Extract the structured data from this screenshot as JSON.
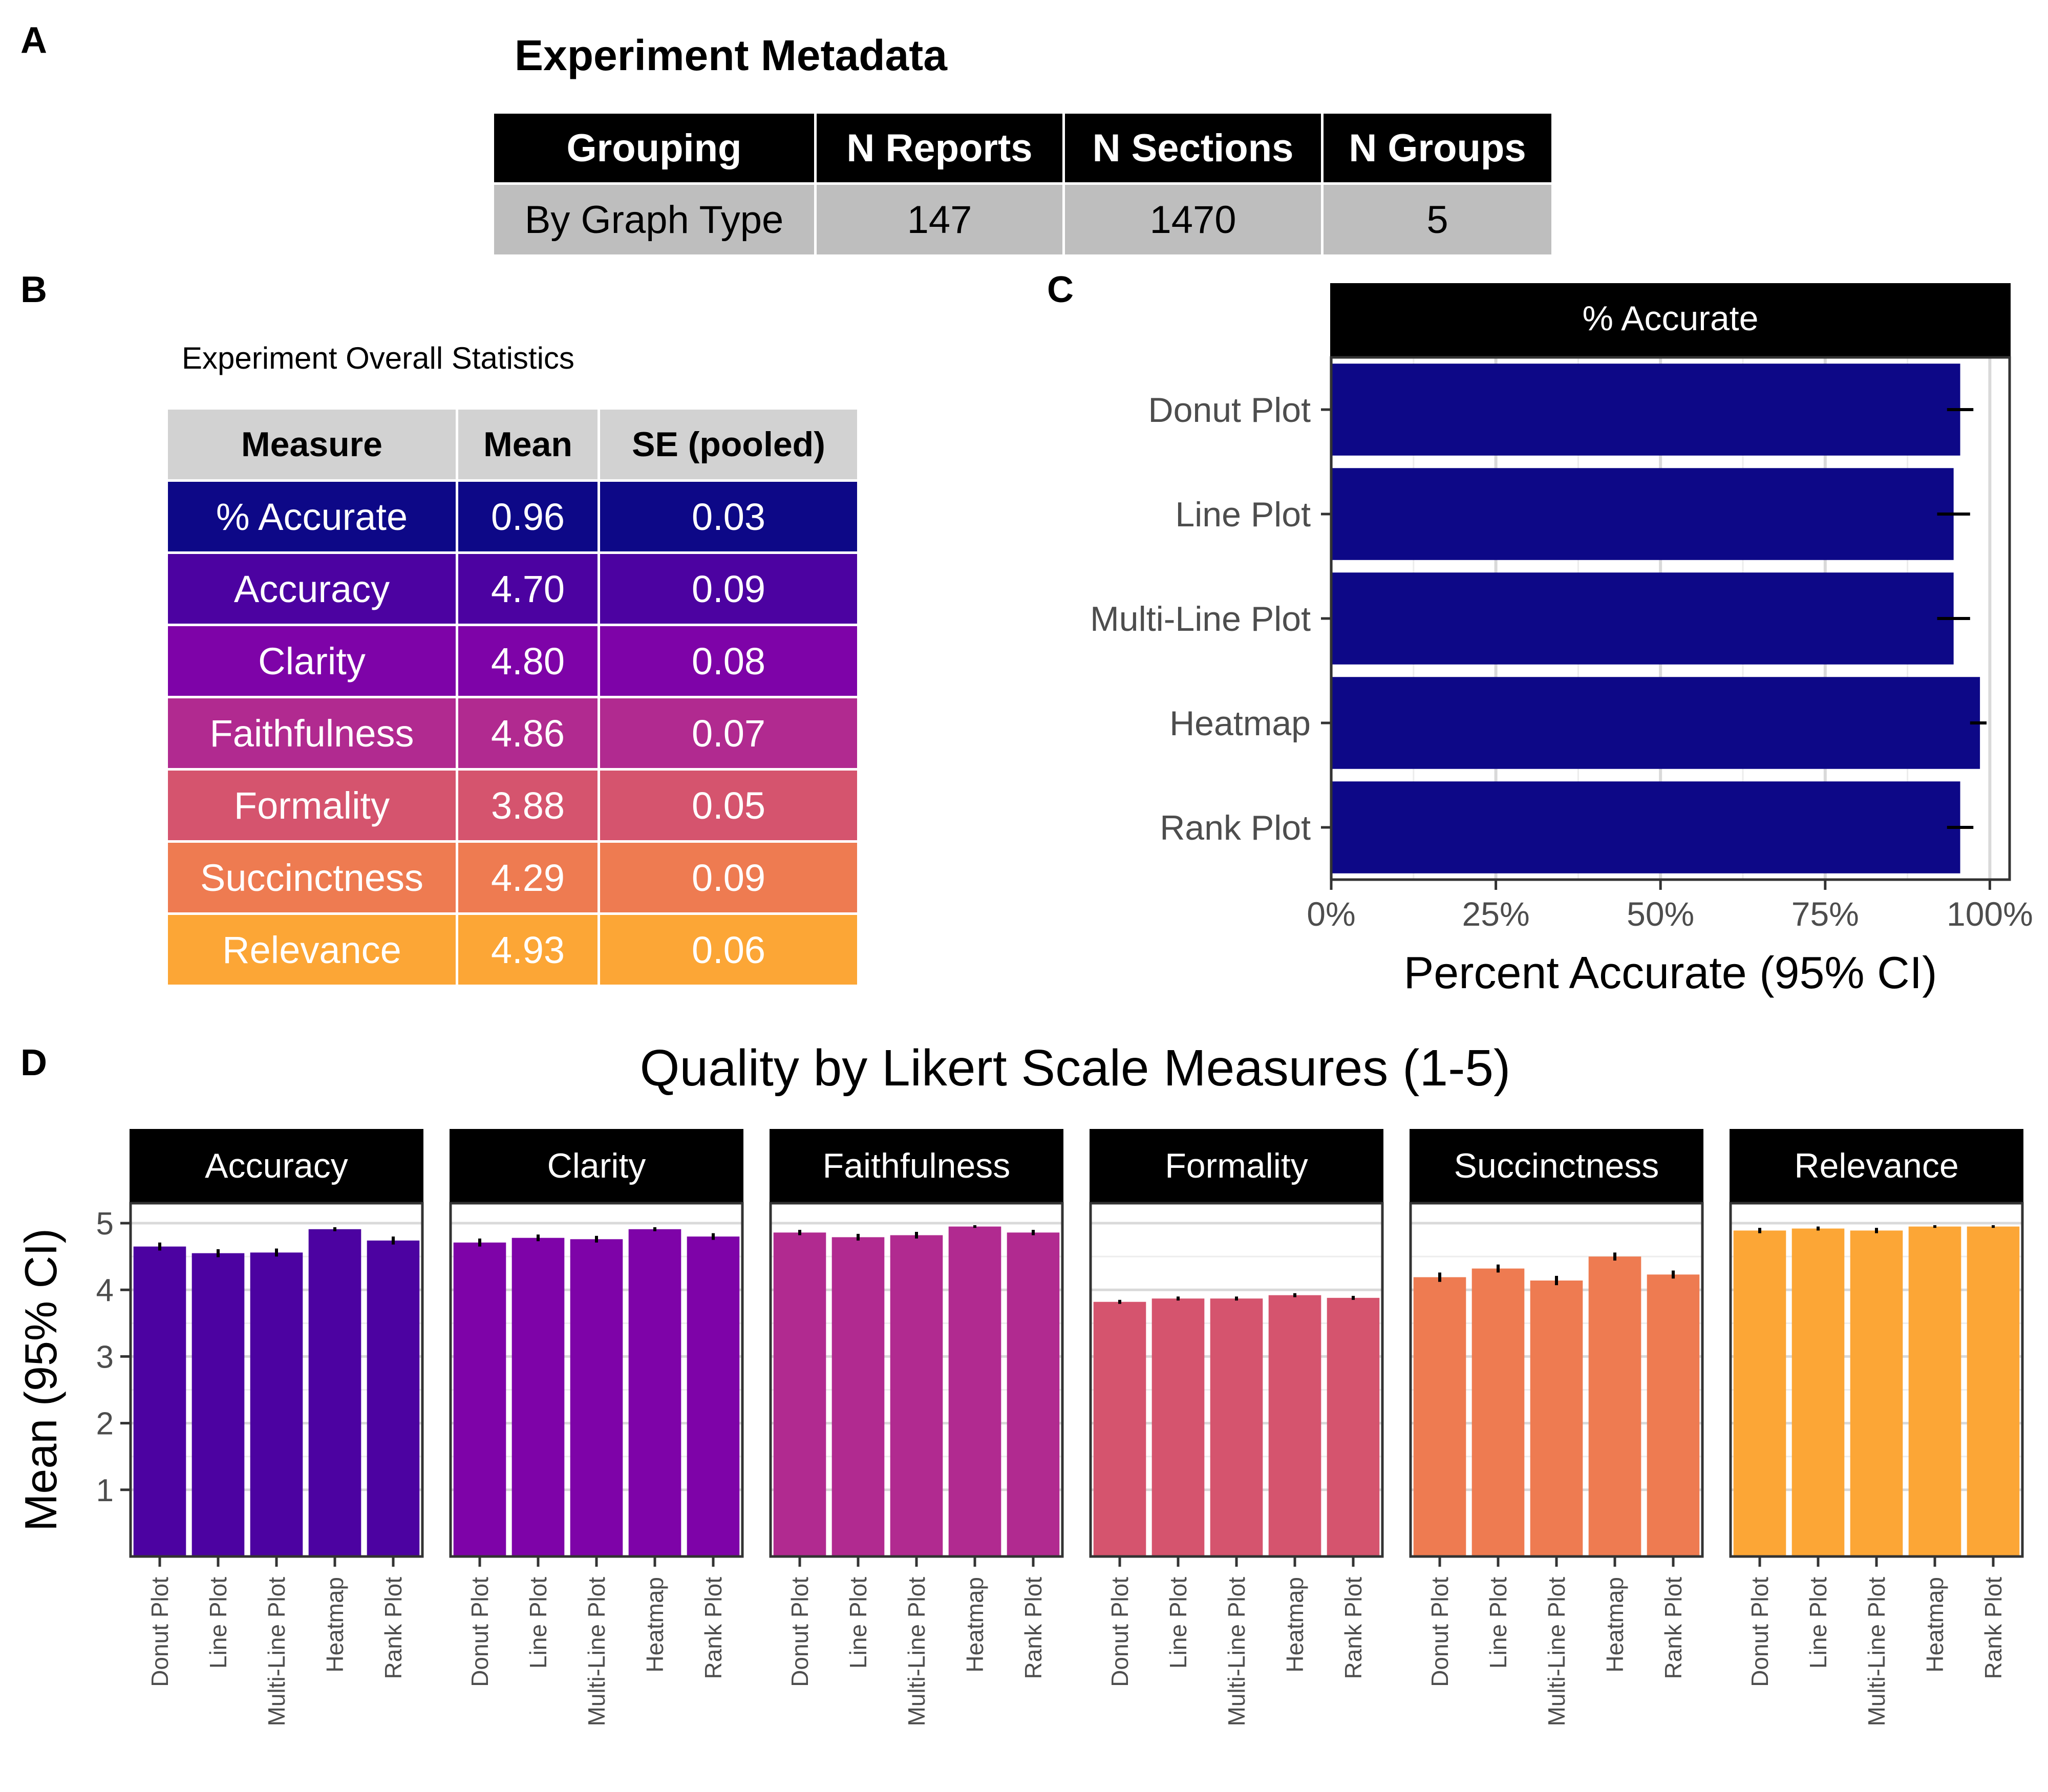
{
  "panel_labels": {
    "a": "A",
    "b": "B",
    "c": "C",
    "d": "D"
  },
  "metadata": {
    "title": "Experiment Metadata",
    "headers": [
      "Grouping",
      "N Reports",
      "N Sections",
      "N Groups"
    ],
    "row": [
      "By Graph Type",
      "147",
      "1470",
      "5"
    ]
  },
  "stats": {
    "caption": "Experiment Overall Statistics",
    "headers": [
      "Measure",
      "Mean",
      "SE (pooled)"
    ],
    "rows": [
      {
        "measure": "% Accurate",
        "mean": "0.96",
        "se": "0.03",
        "color": "#0d0887"
      },
      {
        "measure": "Accuracy",
        "mean": "4.70",
        "se": "0.09",
        "color": "#4c02a1"
      },
      {
        "measure": "Clarity",
        "mean": "4.80",
        "se": "0.08",
        "color": "#7e03a8"
      },
      {
        "measure": "Faithfulness",
        "mean": "4.86",
        "se": "0.07",
        "color": "#b12a90"
      },
      {
        "measure": "Formality",
        "mean": "3.88",
        "se": "0.05",
        "color": "#d5546e"
      },
      {
        "measure": "Succinctness",
        "mean": "4.29",
        "se": "0.09",
        "color": "#ee7b51"
      },
      {
        "measure": "Relevance",
        "mean": "4.93",
        "se": "0.06",
        "color": "#fca636"
      }
    ]
  },
  "chart_data": [
    {
      "type": "bar",
      "orientation": "horizontal",
      "strip_title": "% Accurate",
      "categories": [
        "Donut Plot",
        "Line Plot",
        "Multi-Line Plot",
        "Heatmap",
        "Rank Plot"
      ],
      "values": [
        0.955,
        0.945,
        0.945,
        0.985,
        0.955
      ],
      "ci_low": [
        0.935,
        0.92,
        0.92,
        0.97,
        0.935
      ],
      "ci_high": [
        0.975,
        0.97,
        0.97,
        0.995,
        0.975
      ],
      "xlabel": "Percent Accurate (95% CI)",
      "xticks": [
        "0%",
        "25%",
        "50%",
        "75%",
        "100%"
      ],
      "xlim": [
        0,
        1.03
      ],
      "color": "#0d0887",
      "grid": true
    },
    {
      "type": "bar",
      "title": "Quality by Likert Scale Measures (1-5)",
      "ylabel": "Mean (95% CI)",
      "yticks": [
        "1",
        "2",
        "3",
        "4",
        "5"
      ],
      "ylim": [
        0,
        5.3
      ],
      "grid": true,
      "categories": [
        "Donut Plot",
        "Line Plot",
        "Multi-Line Plot",
        "Heatmap",
        "Rank Plot"
      ],
      "facets": [
        {
          "name": "Accuracy",
          "color": "#4c02a1",
          "values": [
            4.65,
            4.55,
            4.56,
            4.91,
            4.74
          ],
          "err": [
            0.06,
            0.06,
            0.06,
            0.03,
            0.06
          ]
        },
        {
          "name": "Clarity",
          "color": "#7e03a8",
          "values": [
            4.71,
            4.78,
            4.76,
            4.91,
            4.8
          ],
          "err": [
            0.06,
            0.05,
            0.05,
            0.03,
            0.05
          ]
        },
        {
          "name": "Faithfulness",
          "color": "#b12a90",
          "values": [
            4.86,
            4.79,
            4.82,
            4.95,
            4.86
          ],
          "err": [
            0.04,
            0.05,
            0.05,
            0.02,
            0.04
          ]
        },
        {
          "name": "Formality",
          "color": "#d5546e",
          "values": [
            3.82,
            3.87,
            3.87,
            3.92,
            3.88
          ],
          "err": [
            0.03,
            0.03,
            0.03,
            0.03,
            0.03
          ]
        },
        {
          "name": "Succinctness",
          "color": "#ee7b51",
          "values": [
            4.19,
            4.32,
            4.14,
            4.5,
            4.23
          ],
          "err": [
            0.07,
            0.06,
            0.07,
            0.06,
            0.06
          ]
        },
        {
          "name": "Relevance",
          "color": "#fca636",
          "values": [
            4.89,
            4.92,
            4.89,
            4.95,
            4.95
          ],
          "err": [
            0.04,
            0.03,
            0.04,
            0.02,
            0.02
          ]
        }
      ]
    }
  ]
}
